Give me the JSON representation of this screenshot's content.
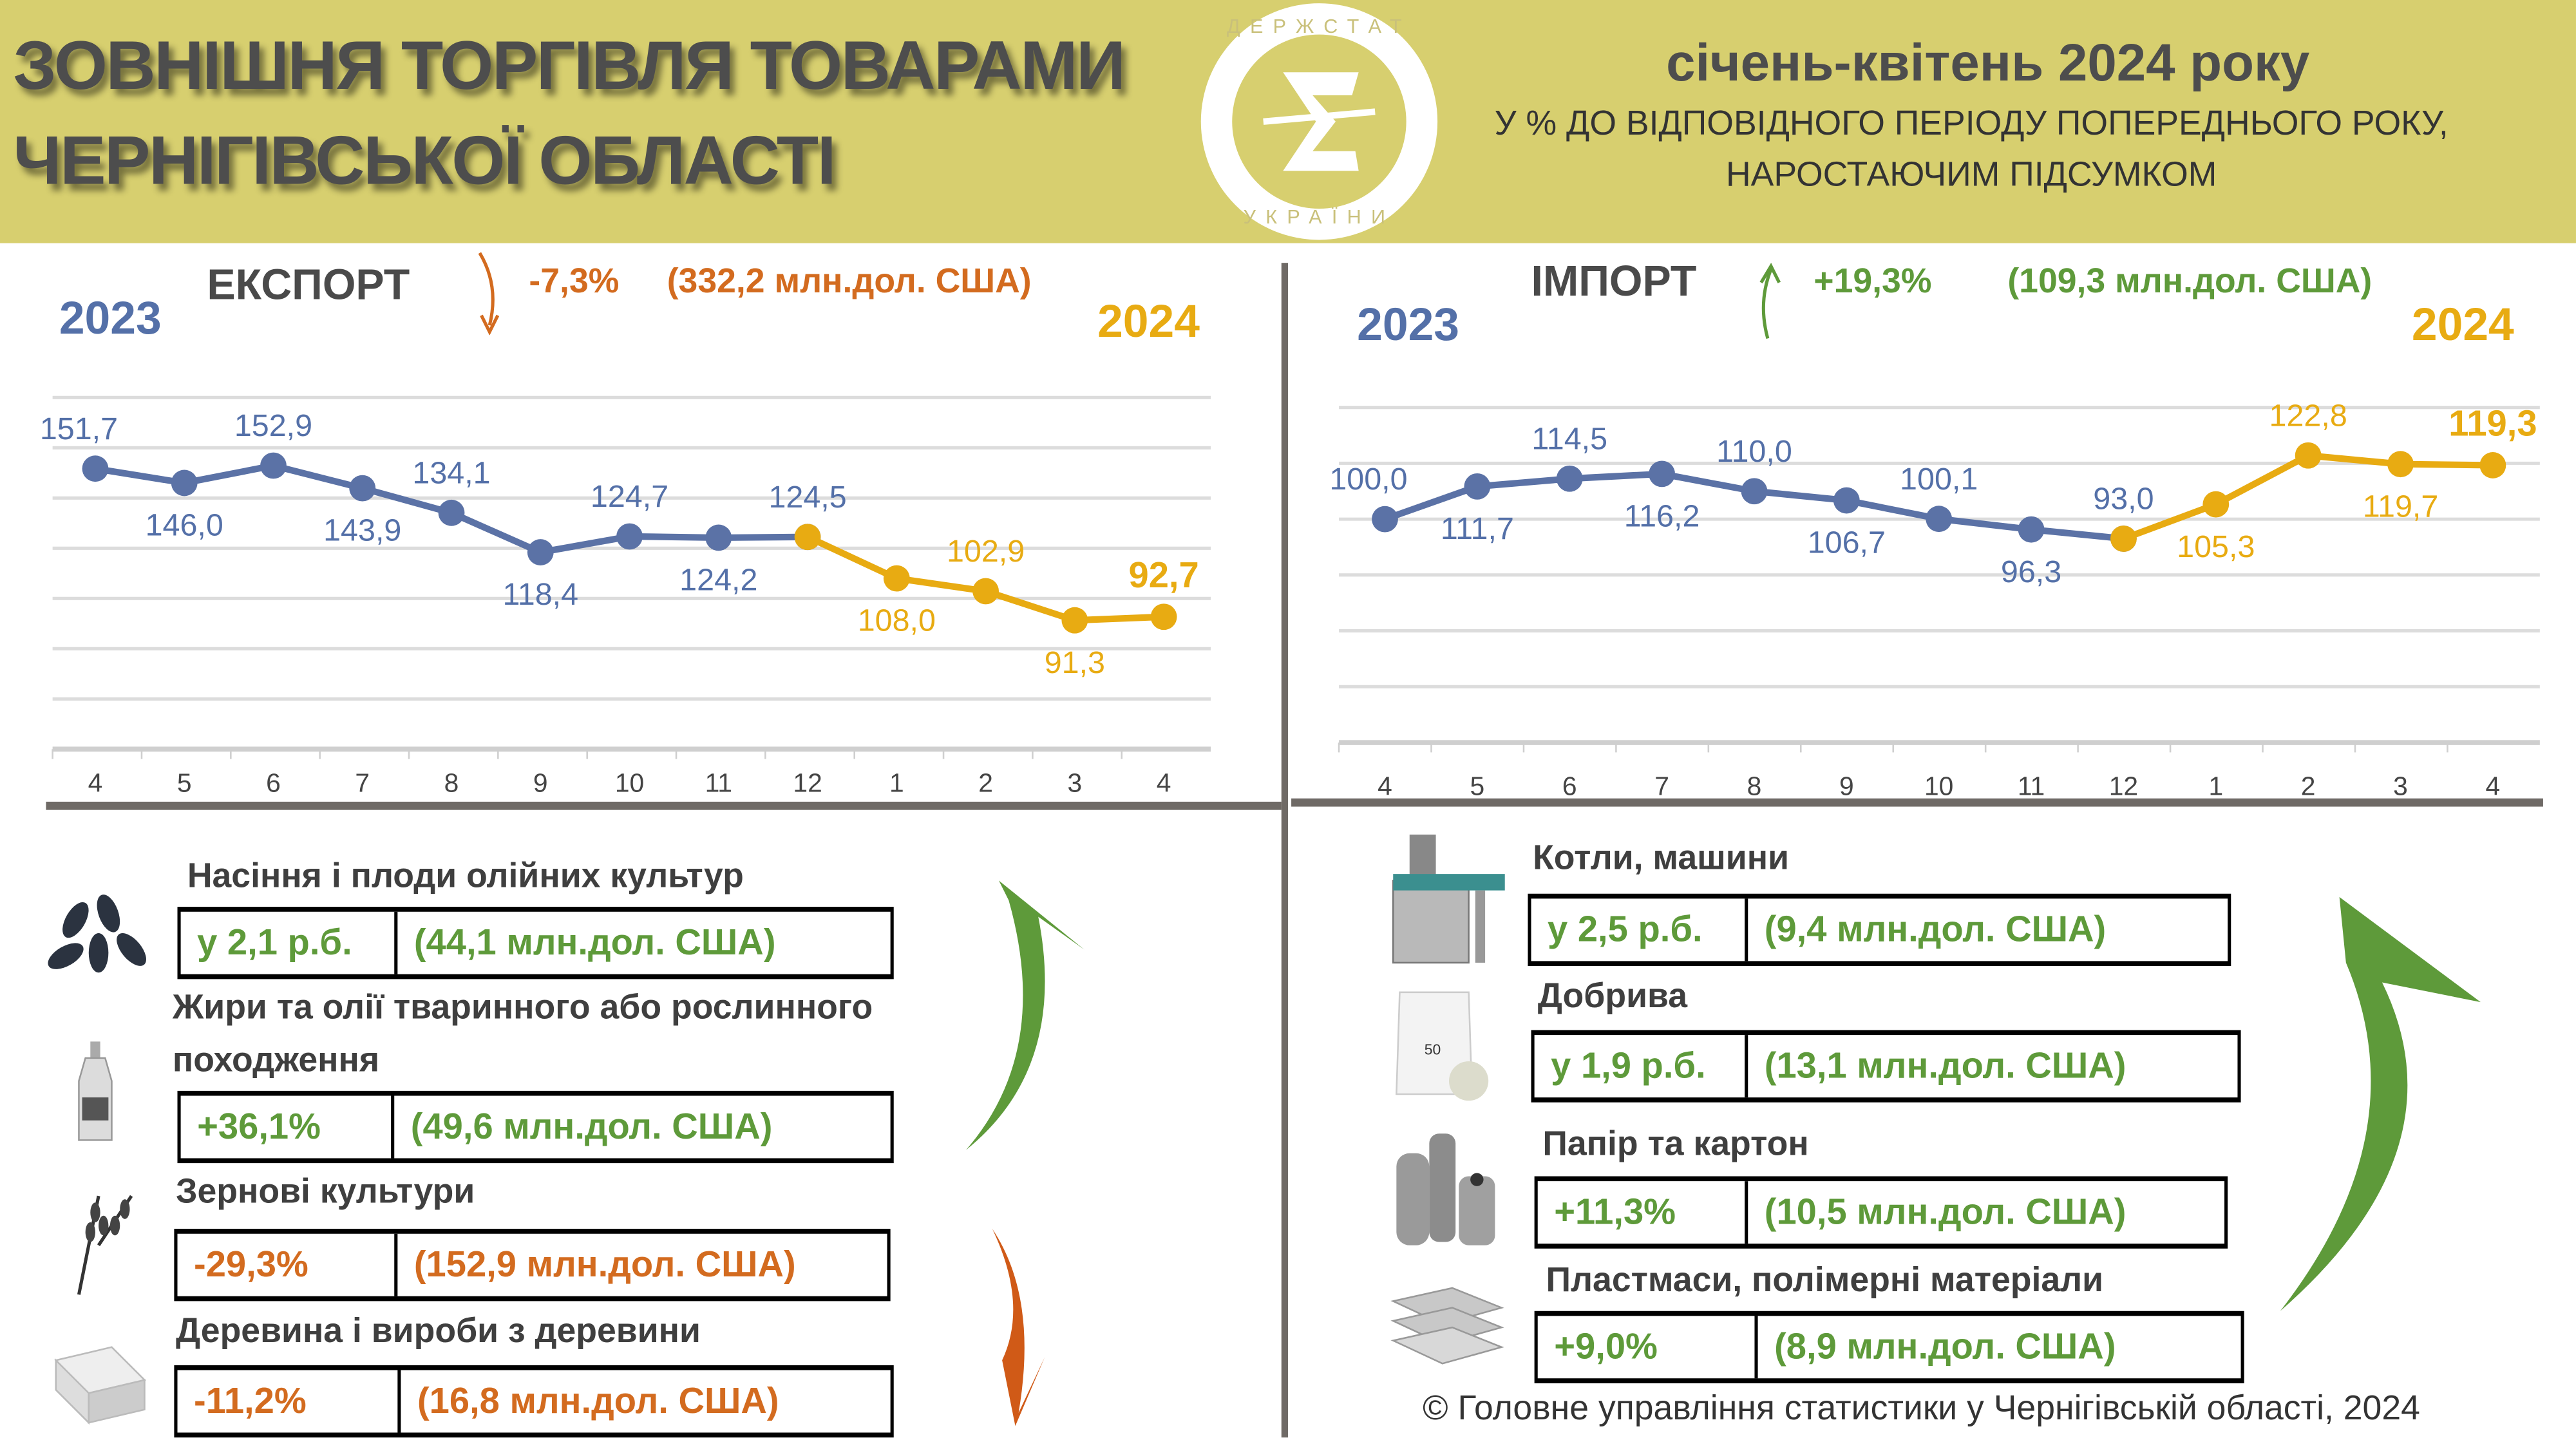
{
  "header": {
    "title_line1": "ЗОВНІШНЯ ТОРГІВЛЯ ТОВАРАМИ",
    "title_line2": "ЧЕРНІГІВСЬКОЇ ОБЛАСТІ",
    "logo_text": "ДЕРЖСТАТ УКРАЇНИ",
    "period": "січень-квітень 2024 року",
    "subtitle_line1": "У % ДО ВІДПОВІДНОГО ПЕРІОДУ ПОПЕРЕДНЬОГО РОКУ,",
    "subtitle_line2": "НАРОСТАЮЧИМ ПІДСУМКОМ"
  },
  "export": {
    "title": "ЕКСПОРТ",
    "change": "-7,3%",
    "amount": "(332,2 млн.дол. США)",
    "year_start": "2023",
    "year_end": "2024"
  },
  "import": {
    "title": "ІМПОРТ",
    "change": "+19,3%",
    "amount": "(109,3 млн.дол. США)",
    "year_start": "2023",
    "year_end": "2024"
  },
  "chart_data": [
    {
      "type": "line",
      "title": "ЕКСПОРТ",
      "categories": [
        "4",
        "5",
        "6",
        "7",
        "8",
        "9",
        "10",
        "11",
        "12",
        "1",
        "2",
        "3",
        "4"
      ],
      "series": [
        {
          "name": "2023",
          "values": [
            151.7,
            146.0,
            152.9,
            143.9,
            134.1,
            118.4,
            124.7,
            124.2,
            124.5,
            null,
            null,
            null,
            null
          ],
          "color": "#5b72a6"
        },
        {
          "name": "2024",
          "values": [
            null,
            null,
            null,
            null,
            null,
            null,
            null,
            null,
            124.5,
            108.0,
            102.9,
            91.3,
            92.7
          ],
          "color": "#e8ab12"
        }
      ],
      "labels": [
        "151,7",
        "146,0",
        "152,9",
        "143,9",
        "134,1",
        "118,4",
        "124,7",
        "124,2",
        "124,5",
        "108,0",
        "102,9",
        "91,3",
        "92,7"
      ],
      "ylim": [
        40,
        180
      ],
      "grid": true
    },
    {
      "type": "line",
      "title": "ІМПОРТ",
      "categories": [
        "4",
        "5",
        "6",
        "7",
        "8",
        "9",
        "10",
        "11",
        "12",
        "1",
        "2",
        "3",
        "4"
      ],
      "series": [
        {
          "name": "2023",
          "values": [
            100.0,
            111.7,
            114.5,
            116.2,
            110.0,
            106.7,
            100.1,
            96.3,
            93.0,
            null,
            null,
            null,
            null
          ],
          "color": "#5b72a6"
        },
        {
          "name": "2024",
          "values": [
            null,
            null,
            null,
            null,
            null,
            null,
            null,
            null,
            93.0,
            105.3,
            122.8,
            119.7,
            119.3
          ],
          "color": "#e8ab12"
        }
      ],
      "labels": [
        "100,0",
        "111,7",
        "114,5",
        "116,2",
        "110,0",
        "106,7",
        "100,1",
        "96,3",
        "93,0",
        "105,3",
        "122,8",
        "119,7",
        "119,3"
      ],
      "ylim": [
        20,
        140
      ],
      "grid": true
    }
  ],
  "export_products": [
    {
      "name": "Насіння і плоди олійних культур",
      "change": "у 2,1 р.б.",
      "amount": "(44,1 млн.дол. США)",
      "trend": "up"
    },
    {
      "name": "Жири та олії тваринного або рослинного",
      "name2": "походження",
      "change": "+36,1%",
      "amount": "(49,6 млн.дол. США)",
      "trend": "up"
    },
    {
      "name": "Зернові культури",
      "change": "-29,3%",
      "amount": "(152,9 млн.дол. США)",
      "trend": "down"
    },
    {
      "name": "Деревина і вироби з деревини",
      "change": "-11,2%",
      "amount": "(16,8 млн.дол. США)",
      "trend": "down"
    }
  ],
  "import_products": [
    {
      "name": "Котли, машини",
      "change": "у 2,5 р.б.",
      "amount": "(9,4 млн.дол. США)"
    },
    {
      "name": "Добрива",
      "change": "у 1,9 р.б.",
      "amount": "(13,1 млн.дол. США)"
    },
    {
      "name": "Папір та картон",
      "change": "+11,3%",
      "amount": "(10,5 млн.дол. США)"
    },
    {
      "name": "Пластмаси, полімерні матеріали",
      "change": "+9,0%",
      "amount": "(8,9 млн.дол. США)"
    }
  ],
  "footer": "© Головне управління статистики у Чернігівській області, 2024"
}
